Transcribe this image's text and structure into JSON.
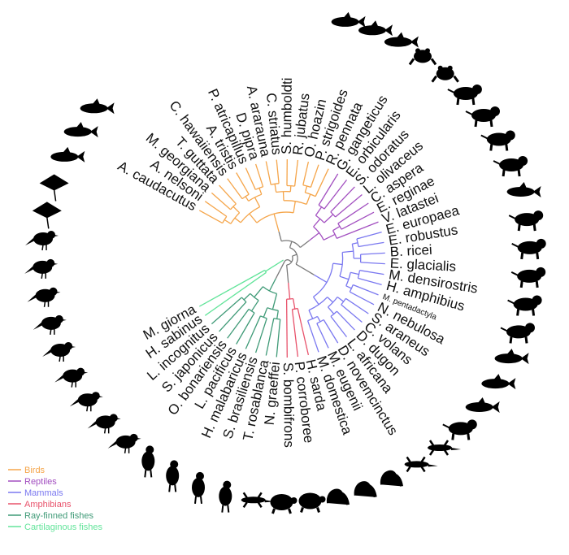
{
  "legend": [
    {
      "label": "Birds",
      "color": "#F5A54A"
    },
    {
      "label": "Reptiles",
      "color": "#A24FC0"
    },
    {
      "label": "Mammals",
      "color": "#7A78F0"
    },
    {
      "label": "Amphibians",
      "color": "#E8526B"
    },
    {
      "label": "Ray-finned fishes",
      "color": "#3F9A77"
    },
    {
      "label": "Cartilaginous fishes",
      "color": "#62E49A"
    }
  ],
  "backbone_color": "#7A7A7A",
  "taxa": [
    {
      "name": "A. caudacutus",
      "group": "Birds"
    },
    {
      "name": "A. nelsoni",
      "group": "Birds"
    },
    {
      "name": "M. georgiana",
      "group": "Birds"
    },
    {
      "name": "T. guttata",
      "group": "Birds"
    },
    {
      "name": "C. hawaiiensis",
      "group": "Birds"
    },
    {
      "name": "A. tristis",
      "group": "Birds"
    },
    {
      "name": "P. atricapillus",
      "group": "Birds"
    },
    {
      "name": "D. pipra",
      "group": "Birds"
    },
    {
      "name": "A. ararauna",
      "group": "Birds"
    },
    {
      "name": "C. striatus",
      "group": "Birds"
    },
    {
      "name": "S. humboldti",
      "group": "Birds"
    },
    {
      "name": "R. jubatus",
      "group": "Birds"
    },
    {
      "name": "O. hoazin",
      "group": "Birds"
    },
    {
      "name": "P. strigoides",
      "group": "Birds"
    },
    {
      "name": "R. pennata",
      "group": "Birds"
    },
    {
      "name": "G. gangeticus",
      "group": "Reptiles"
    },
    {
      "name": "E. orbicularis",
      "group": "Reptiles"
    },
    {
      "name": "S. odoratus",
      "group": "Reptiles"
    },
    {
      "name": "L. olivaceus",
      "group": "Reptiles"
    },
    {
      "name": "C. aspera",
      "group": "Reptiles"
    },
    {
      "name": "E. reginae",
      "group": "Reptiles"
    },
    {
      "name": "V. latastei",
      "group": "Reptiles"
    },
    {
      "name": "E. europaea",
      "group": "Mammals"
    },
    {
      "name": "E. robustus",
      "group": "Mammals"
    },
    {
      "name": "B. ricei",
      "group": "Mammals"
    },
    {
      "name": "E. glacialis",
      "group": "Mammals"
    },
    {
      "name": "M. densirostris",
      "group": "Mammals"
    },
    {
      "name": "H. amphibius",
      "group": "Mammals"
    },
    {
      "name": "M. pentadactyla",
      "group": "Mammals",
      "small": true
    },
    {
      "name": "N. nebulosa",
      "group": "Mammals"
    },
    {
      "name": "S. araneus",
      "group": "Mammals"
    },
    {
      "name": "C. volans",
      "group": "Mammals"
    },
    {
      "name": "D. dugon",
      "group": "Mammals"
    },
    {
      "name": "L. africana",
      "group": "Mammals"
    },
    {
      "name": "D. novemcinctus",
      "group": "Mammals"
    },
    {
      "name": "M. eugenii",
      "group": "Mammals"
    },
    {
      "name": "M. domestica",
      "group": "Mammals"
    },
    {
      "name": "H. sarda",
      "group": "Amphibians"
    },
    {
      "name": "P. corroboree",
      "group": "Amphibians"
    },
    {
      "name": "S. bombifrons",
      "group": "Amphibians"
    },
    {
      "name": "N. graeffei",
      "group": "Ray-finned fishes"
    },
    {
      "name": "T. rosablanca",
      "group": "Ray-finned fishes"
    },
    {
      "name": "S. brasiliensis",
      "group": "Ray-finned fishes"
    },
    {
      "name": "H. malabaricus",
      "group": "Ray-finned fishes"
    },
    {
      "name": "L. pacificus",
      "group": "Ray-finned fishes"
    },
    {
      "name": "O. bonariensis",
      "group": "Ray-finned fishes"
    },
    {
      "name": "S. japonicus",
      "group": "Ray-finned fishes"
    },
    {
      "name": "L. incognitus",
      "group": "Ray-finned fishes"
    },
    {
      "name": "H. sabinus",
      "group": "Cartilaginous fishes"
    },
    {
      "name": "M. giorna",
      "group": "Cartilaginous fishes"
    }
  ],
  "silhouettes": [
    "shark-silhouette",
    "fish-silhouette",
    "fish-silhouette",
    "frog-silhouette",
    "frog-silhouette",
    "possum-silhouette",
    "kangaroo-silhouette",
    "armadillo-silhouette",
    "elephant-silhouette",
    "dugong-silhouette",
    "lemur-silhouette",
    "shrew-silhouette",
    "leopard-silhouette",
    "pangolin-silhouette",
    "hippo-silhouette",
    "whale-silhouette",
    "whale-silhouette",
    "whale-silhouette",
    "hedgehog-silhouette",
    "lizard-silhouette",
    "lizard-silhouette",
    "snake-silhouette",
    "snake-silhouette",
    "snake-silhouette",
    "turtle-silhouette",
    "turtle-silhouette",
    "crocodile-silhouette",
    "rhea-silhouette",
    "owl-silhouette",
    "hoatzin-silhouette",
    "penguin-silhouette",
    "parrot-silhouette",
    "parrot-silhouette",
    "bird-silhouette",
    "bird-silhouette",
    "bird-silhouette",
    "bird-silhouette",
    "bird-silhouette",
    "bird-silhouette",
    "bird-silhouette",
    "ray-silhouette",
    "ray-silhouette",
    "fish-silhouette",
    "fish-silhouette",
    "fish-silhouette"
  ]
}
